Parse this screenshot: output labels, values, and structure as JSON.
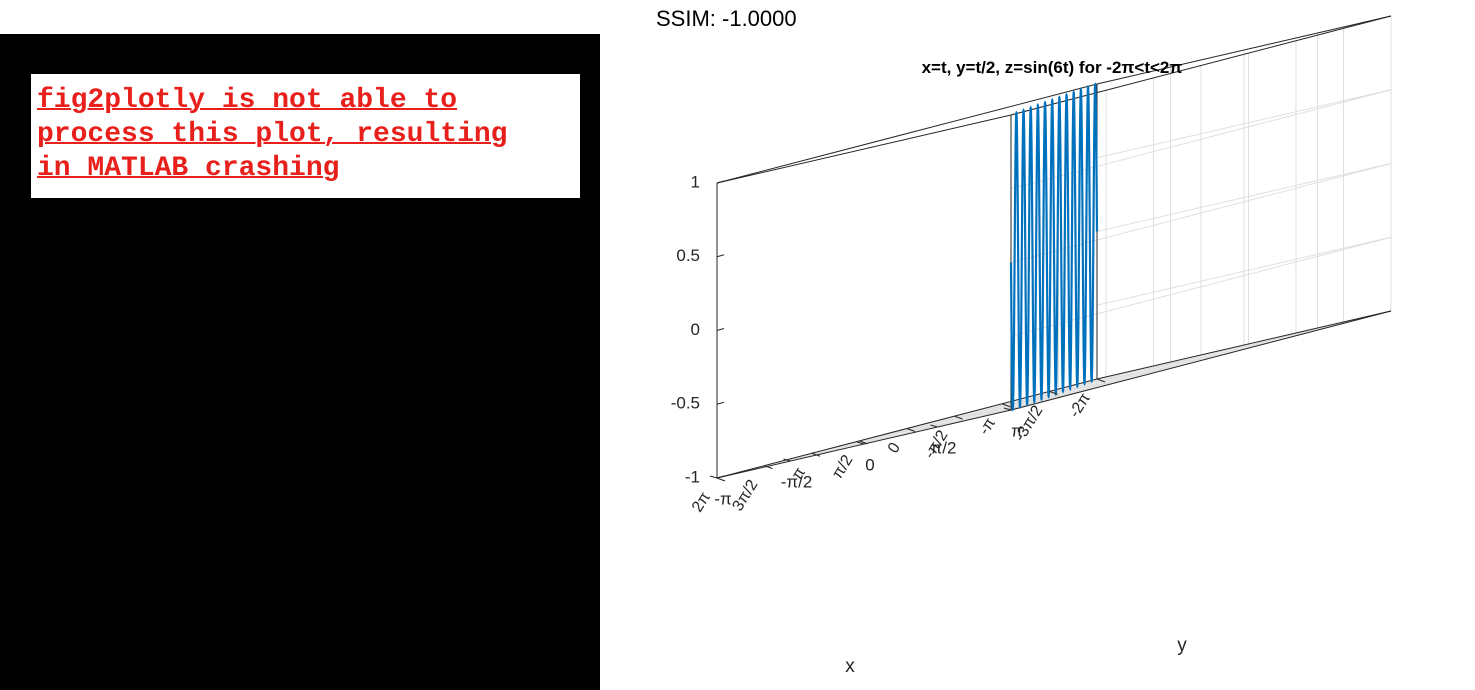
{
  "ssim_label": "SSIM: -1.0000",
  "message": {
    "text": "fig2plotly is not able to\nprocess this plot, resulting\nin MATLAB crashing",
    "color": "#e8201c"
  },
  "chart_data": {
    "type": "line",
    "title": "x=t, y=t/2, z=sin(6t) for -2π<t<2π",
    "xlabel": "x",
    "ylabel": "y",
    "zlabel": "",
    "x_expr": "t",
    "y_expr": "t/2",
    "z_expr": "sin(6t)",
    "t_range": [
      -6.2832,
      6.2832
    ],
    "xlim": [
      -6.2832,
      6.2832
    ],
    "ylim": [
      -3.1416,
      3.1416
    ],
    "zlim": [
      -1,
      1
    ],
    "x_ticks": [
      "-2π",
      "-3π/2",
      "-π",
      "-π/2",
      "0",
      "π/2",
      "π",
      "3π/2",
      "2π"
    ],
    "y_ticks": [
      "-π",
      "-π/2",
      "0",
      "π/2",
      "π"
    ],
    "z_ticks": [
      "-1",
      "-0.5",
      "0",
      "0.5",
      "1"
    ],
    "grid": true,
    "line_color": "#0072bd"
  }
}
